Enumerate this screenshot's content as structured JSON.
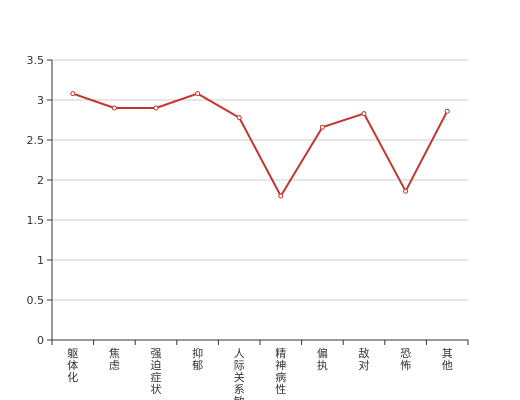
{
  "chart_data": {
    "type": "line",
    "title": "",
    "xlabel": "",
    "ylabel": "",
    "ylim": [
      0,
      3.5
    ],
    "yticks": [
      "0",
      "0.5",
      "1",
      "1.5",
      "2",
      "2.5",
      "3",
      "3.5"
    ],
    "grid": true,
    "legend": "none",
    "categories": [
      "躯体化",
      "焦虑",
      "强迫症状",
      "抑郁",
      "人际关系敏感",
      "精神病性",
      "偏执",
      "敌对",
      "恐怖",
      "其他"
    ],
    "series": [
      {
        "name": "",
        "values": [
          3.08,
          2.9,
          2.9,
          3.08,
          2.78,
          1.8,
          2.66,
          2.83,
          1.86,
          2.86
        ]
      }
    ],
    "colors": {
      "line": "#c23531"
    }
  }
}
